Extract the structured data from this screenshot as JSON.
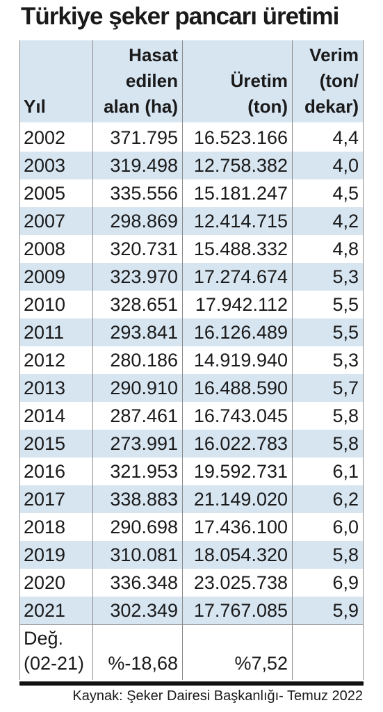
{
  "title": "Türkiye şeker pancarı üretimi",
  "table": {
    "header": [
      [
        "Yıl"
      ],
      [
        "Hasat",
        "edilen",
        "alan (ha)"
      ],
      [
        "Üretim",
        "(ton)"
      ],
      [
        "Verim",
        "(ton/",
        "dekar)"
      ]
    ],
    "rows": [
      [
        "2002",
        "371.795",
        "16.523.166",
        "4,4"
      ],
      [
        "2003",
        "319.498",
        "12.758.382",
        "4,0"
      ],
      [
        "2005",
        "335.556",
        "15.181.247",
        "4,5"
      ],
      [
        "2007",
        "298.869",
        "12.414.715",
        "4,2"
      ],
      [
        "2008",
        "320.731",
        "15.488.332",
        "4,8"
      ],
      [
        "2009",
        "323.970",
        "17.274.674",
        "5,3"
      ],
      [
        "2010",
        "328.651",
        "17.942.112",
        "5,5"
      ],
      [
        "2011",
        "293.841",
        "16.126.489",
        "5,5"
      ],
      [
        "2012",
        "280.186",
        "14.919.940",
        "5,3"
      ],
      [
        "2013",
        "290.910",
        "16.488.590",
        "5,7"
      ],
      [
        "2014",
        "287.461",
        "16.743.045",
        "5,8"
      ],
      [
        "2015",
        "273.991",
        "16.022.783",
        "5,8"
      ],
      [
        "2016",
        "321.953",
        "19.592.731",
        "6,1"
      ],
      [
        "2017",
        "338.883",
        "21.149.020",
        "6,2"
      ],
      [
        "2018",
        "290.698",
        "17.436.100",
        "6,0"
      ],
      [
        "2019",
        "310.081",
        "18.054.320",
        "5,8"
      ],
      [
        "2020",
        "336.348",
        "23.025.738",
        "6,9"
      ],
      [
        "2021",
        "302.349",
        "17.767.085",
        "5,9"
      ]
    ],
    "footer": {
      "label": [
        "Değ.",
        "(02-21)"
      ],
      "area": "%-18,68",
      "production": "%7,52"
    }
  },
  "source": "Kaynak: Şeker Dairesi Başkanlığı- Temuz 2022"
}
